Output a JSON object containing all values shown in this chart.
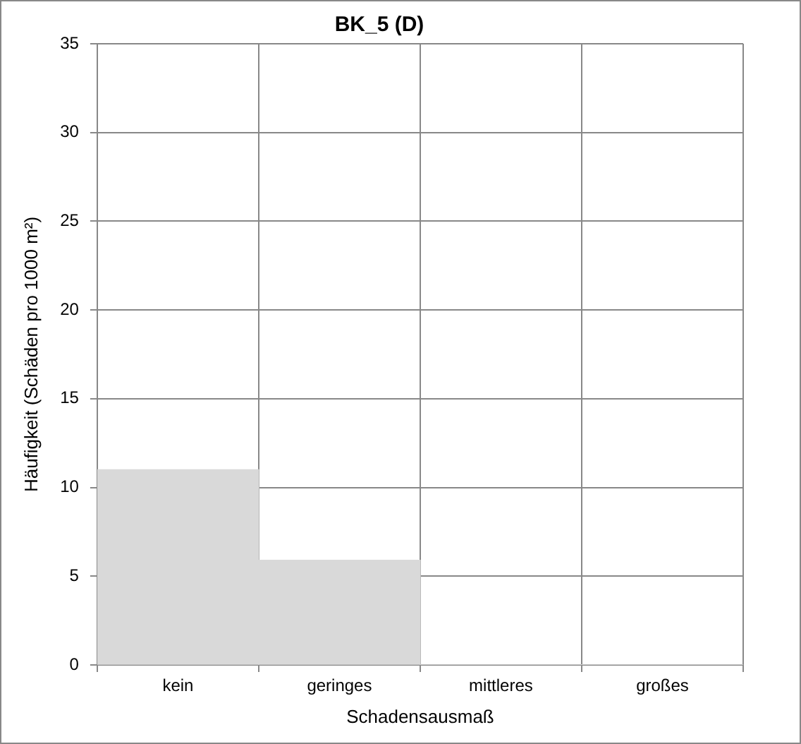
{
  "chart_data": {
    "type": "bar",
    "title": "BK_5 (D)",
    "xlabel": "Schadensausmaß",
    "ylabel": "Häufigkeit (Schäden pro 1000 m²)",
    "categories": [
      "kein",
      "geringes",
      "mittleres",
      "großes"
    ],
    "values": [
      11,
      5.9,
      0,
      0
    ],
    "color": "#d9d9d9",
    "ylim": [
      0,
      35
    ],
    "yticks": [
      0,
      5,
      10,
      15,
      20,
      25,
      30,
      35
    ],
    "grid": true,
    "legend": false
  }
}
